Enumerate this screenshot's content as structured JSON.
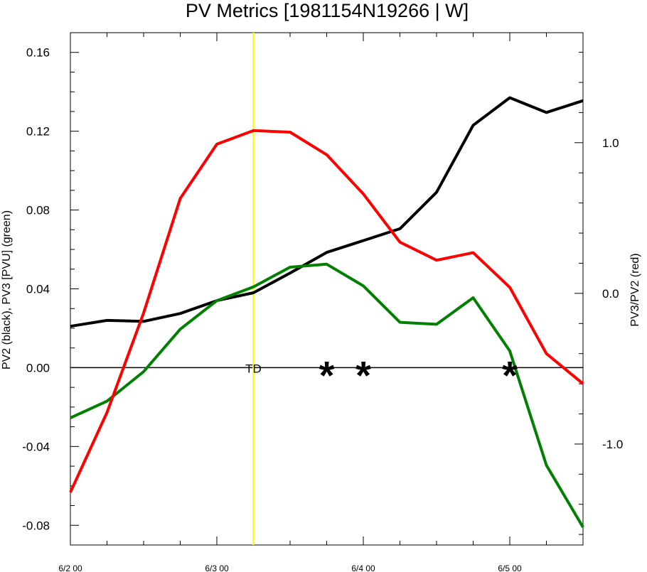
{
  "chart_data": {
    "type": "line",
    "title": "PV Metrics [1981154N19266 | W]",
    "ylabel_left": "PV2 (black), PV3 [PVU] (green)",
    "ylabel_right": "PV3/PV2 (red)",
    "x_tick_labels": [
      "6/2 00",
      "6/3 00",
      "6/4 00",
      "6/5 00"
    ],
    "x": [
      0,
      0.25,
      0.5,
      0.75,
      1.0,
      1.25,
      1.5,
      1.75,
      2.0,
      2.25,
      2.5,
      2.75,
      3.0,
      3.25,
      3.5
    ],
    "xlim": [
      0,
      3.5
    ],
    "ylim_left": [
      -0.09,
      0.17
    ],
    "ylim_right": [
      -1.67,
      1.73
    ],
    "left_ticks": [
      "0.16",
      "0.12",
      "0.08",
      "0.04",
      "0.00",
      "-0.04",
      "-0.08"
    ],
    "right_ticks": [
      "1.0",
      "0.0",
      "-1.0"
    ],
    "series": [
      {
        "axis": "left",
        "color": "#000000",
        "values": [
          0.021,
          0.024,
          0.0235,
          0.0275,
          0.034,
          0.038,
          0.048,
          0.0585,
          0.0645,
          0.0705,
          0.089,
          0.123,
          0.137,
          0.1295,
          0.1355
        ]
      },
      {
        "axis": "left",
        "color": "#008000",
        "values": [
          -0.0255,
          -0.017,
          -0.002,
          0.0195,
          0.034,
          0.041,
          0.051,
          0.0525,
          0.0415,
          0.023,
          0.022,
          0.0355,
          0.0085,
          -0.0495,
          -0.081
        ]
      },
      {
        "axis": "right",
        "color": "#ff0000",
        "values": [
          -1.32,
          -0.79,
          -0.13,
          0.63,
          0.99,
          1.08,
          1.07,
          0.92,
          0.66,
          0.34,
          0.22,
          0.27,
          0.04,
          -0.4,
          -0.6
        ]
      }
    ],
    "vertical_line": {
      "x": 1.25,
      "color": "#ffff00"
    },
    "annotations": [
      {
        "text": "TD",
        "x": 1.25,
        "y": 0.0
      },
      {
        "text": "*",
        "x": 1.75,
        "y": 0.0
      },
      {
        "text": "*",
        "x": 2.0,
        "y": 0.0
      },
      {
        "text": "*",
        "x": 3.0,
        "y": 0.0
      }
    ]
  }
}
